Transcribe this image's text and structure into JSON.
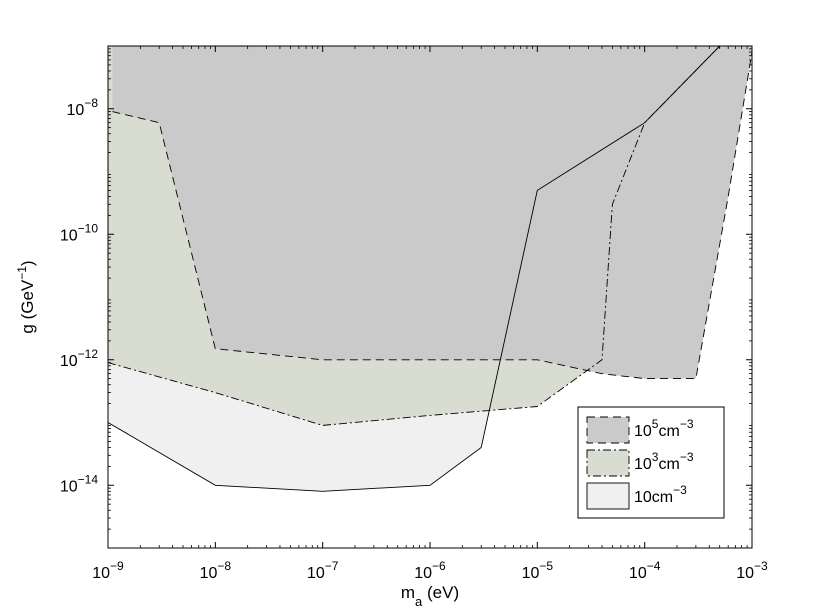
{
  "chart_data": {
    "type": "area",
    "title": "",
    "xlabel": "m_a (eV)",
    "ylabel": "g (GeV^-1)",
    "x_scale": "log",
    "y_scale": "log",
    "xlim": [
      1e-09,
      0.001
    ],
    "ylim": [
      1e-15,
      1e-07
    ],
    "grid": false,
    "legend_position": "lower-right",
    "x_ticks": [
      {
        "value": 1e-09,
        "base": "10",
        "exp": "−9"
      },
      {
        "value": 1e-08,
        "base": "10",
        "exp": "−8"
      },
      {
        "value": 1e-07,
        "base": "10",
        "exp": "−7"
      },
      {
        "value": 1e-06,
        "base": "10",
        "exp": "−6"
      },
      {
        "value": 1e-05,
        "base": "10",
        "exp": "−5"
      },
      {
        "value": 0.0001,
        "base": "10",
        "exp": "−4"
      },
      {
        "value": 0.001,
        "base": "10",
        "exp": "−3"
      }
    ],
    "y_ticks": [
      {
        "value": 1e-14,
        "base": "10",
        "exp": "−14"
      },
      {
        "value": 1e-12,
        "base": "10",
        "exp": "−12"
      },
      {
        "value": 1e-10,
        "base": "10",
        "exp": "−10"
      },
      {
        "value": 1e-08,
        "base": "10",
        "exp": "−8"
      }
    ],
    "series": [
      {
        "name": "10cm^-3",
        "label_prefix": "10cm",
        "label_exp": "−3",
        "fill": "#f0f0f0",
        "line": "solid",
        "boundary": [
          [
            1e-09,
            1e-13
          ],
          [
            1e-08,
            1e-14
          ],
          [
            1e-07,
            8e-15
          ],
          [
            1e-06,
            1e-14
          ],
          [
            3e-06,
            4e-14
          ],
          [
            1e-05,
            5e-10
          ],
          [
            0.0001,
            6e-09
          ],
          [
            0.0005,
            1e-07
          ]
        ]
      },
      {
        "name": "10^3cm^-3",
        "label_prefix": "10",
        "label_exp": "3",
        "label_suffix": "cm",
        "label_exp2": "−3",
        "fill": "#d9dcd1",
        "line": "dashdot",
        "boundary": [
          [
            1e-09,
            9e-13
          ],
          [
            1e-08,
            3e-13
          ],
          [
            1e-07,
            9e-14
          ],
          [
            1e-06,
            1.3e-13
          ],
          [
            1e-05,
            1.8e-13
          ],
          [
            4e-05,
            1e-12
          ],
          [
            5e-05,
            3e-10
          ],
          [
            0.0001,
            6e-09
          ],
          [
            0.0005,
            1e-07
          ]
        ]
      },
      {
        "name": "10^5cm^-3",
        "label_prefix": "10",
        "label_exp": "5",
        "label_suffix": "cm",
        "label_exp2": "−3",
        "fill": "#cacaca",
        "line": "dashed",
        "boundary": [
          [
            1.1e-09,
            9e-09
          ],
          [
            3e-09,
            6e-09
          ],
          [
            1e-08,
            1.5e-12
          ],
          [
            1e-07,
            1e-12
          ],
          [
            1e-05,
            1e-12
          ],
          [
            4e-05,
            6e-13
          ],
          [
            0.0001,
            5e-13
          ],
          [
            0.0003,
            5e-13
          ],
          [
            0.0006,
            4e-10
          ],
          [
            0.001,
            8e-08
          ]
        ]
      }
    ]
  }
}
